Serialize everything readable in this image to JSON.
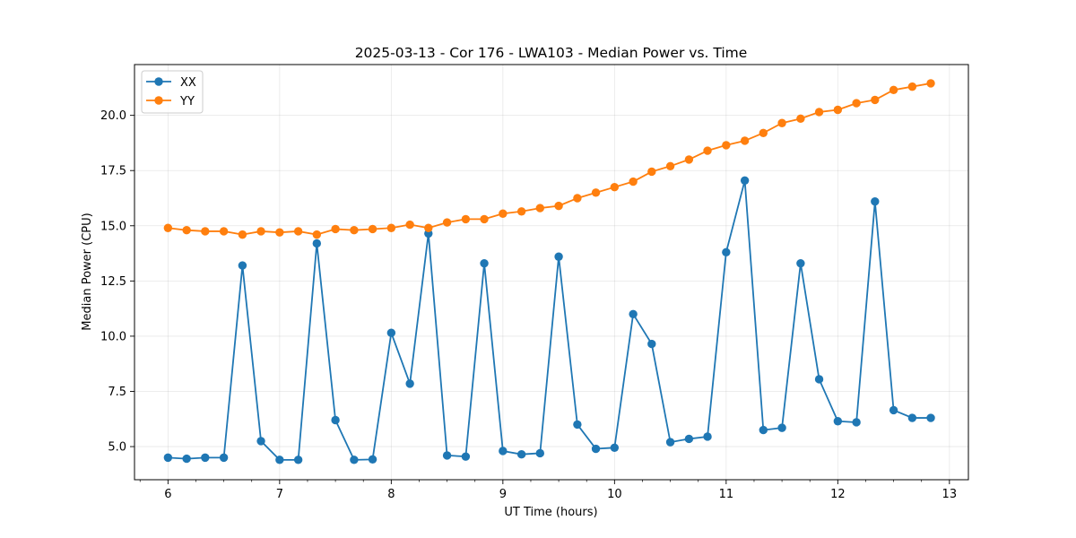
{
  "chart_data": {
    "type": "line",
    "title": "2025-03-13 - Cor 176 - LWA103 - Median Power vs. Time",
    "xlabel": "UT Time (hours)",
    "ylabel": "Median Power (CPU)",
    "xlim": [
      5.7,
      13.17
    ],
    "ylim": [
      3.5,
      22.3
    ],
    "xticks": [
      6,
      7,
      8,
      9,
      10,
      11,
      12,
      13
    ],
    "xtick_labels": [
      "6",
      "7",
      "8",
      "9",
      "10",
      "11",
      "12",
      "13"
    ],
    "yticks": [
      5.0,
      7.5,
      10.0,
      12.5,
      15.0,
      17.5,
      20.0
    ],
    "ytick_labels": [
      "5.0",
      "7.5",
      "10.0",
      "12.5",
      "15.0",
      "17.5",
      "20.0"
    ],
    "grid": true,
    "legend_position": "top-left",
    "x": [
      6.0,
      6.167,
      6.333,
      6.5,
      6.667,
      6.833,
      7.0,
      7.167,
      7.333,
      7.5,
      7.667,
      7.833,
      8.0,
      8.167,
      8.333,
      8.5,
      8.667,
      8.833,
      9.0,
      9.167,
      9.333,
      9.5,
      9.667,
      9.833,
      10.0,
      10.167,
      10.333,
      10.5,
      10.667,
      10.833,
      11.0,
      11.167,
      11.333,
      11.5,
      11.667,
      11.833,
      12.0,
      12.167,
      12.333,
      12.5,
      12.667,
      12.833
    ],
    "series": [
      {
        "name": "XX",
        "color": "#1f77b4",
        "values": [
          4.5,
          4.45,
          4.5,
          4.5,
          13.2,
          5.25,
          4.4,
          4.4,
          14.2,
          6.2,
          4.4,
          4.42,
          10.15,
          7.85,
          14.65,
          4.6,
          4.55,
          13.3,
          4.8,
          4.65,
          4.7,
          13.6,
          6.0,
          4.9,
          4.95,
          11.0,
          9.65,
          5.2,
          5.35,
          5.45,
          13.8,
          17.05,
          5.75,
          5.85,
          13.3,
          8.05,
          6.15,
          6.1,
          16.1,
          6.65,
          6.3,
          6.3
        ]
      },
      {
        "name": "YY",
        "color": "#ff7f0e",
        "values": [
          14.9,
          14.8,
          14.75,
          14.75,
          14.6,
          14.75,
          14.7,
          14.75,
          14.6,
          14.85,
          14.8,
          14.85,
          14.9,
          15.05,
          14.9,
          15.15,
          15.3,
          15.3,
          15.55,
          15.65,
          15.8,
          15.9,
          16.25,
          16.5,
          16.75,
          17.0,
          17.45,
          17.7,
          18.0,
          18.4,
          18.65,
          18.85,
          19.2,
          19.65,
          19.85,
          20.15,
          20.25,
          20.55,
          20.7,
          21.15,
          21.3,
          21.45
        ]
      }
    ]
  }
}
